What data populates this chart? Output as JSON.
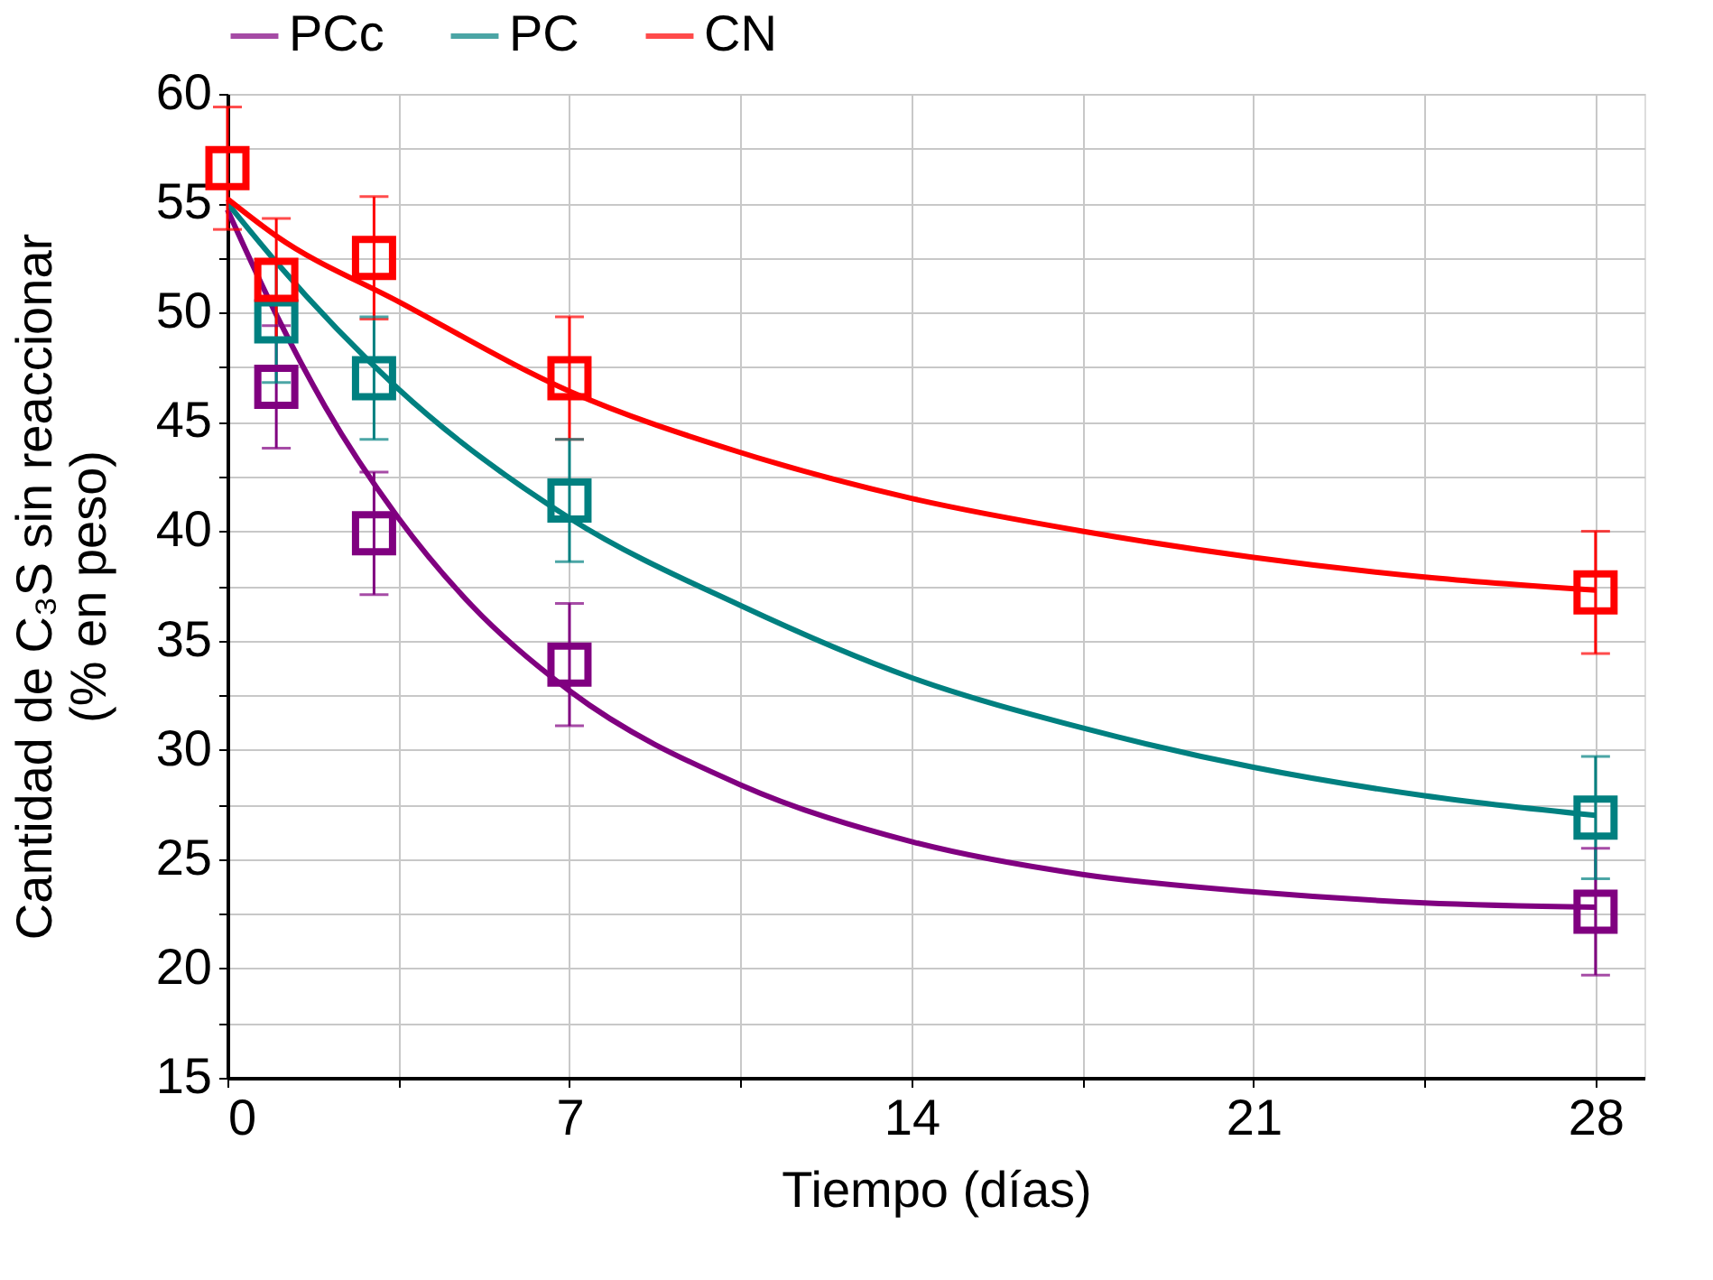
{
  "chart_data": {
    "type": "line",
    "xlabel": "Tiempo (días)",
    "ylabel": "Cantidad de C₃S sin reaccionar\n(% en peso)",
    "xlim": [
      0,
      29
    ],
    "ylim": [
      15,
      60
    ],
    "xticks": [
      0,
      {
        "value": 3.5,
        "label": null
      },
      7,
      {
        "value": 10.5,
        "label": null
      },
      14,
      {
        "value": 17.5,
        "label": null
      },
      21,
      {
        "value": 24.5,
        "label": null
      },
      28
    ],
    "yticks": [
      15,
      {
        "value": 17.5,
        "label": null
      },
      20,
      {
        "value": 22.5,
        "label": null
      },
      25,
      {
        "value": 27.5,
        "label": null
      },
      30,
      {
        "value": 32.5,
        "label": null
      },
      35,
      {
        "value": 37.5,
        "label": null
      },
      40,
      {
        "value": 42.5,
        "label": null
      },
      45,
      {
        "value": 47.5,
        "label": null
      },
      50,
      {
        "value": 52.5,
        "label": null
      },
      55,
      {
        "value": 57.5,
        "label": null
      },
      60
    ],
    "grid": true,
    "legend": "top",
    "series": [
      {
        "name": "PCc",
        "type": "line",
        "color": "#800080",
        "x": [
          0,
          1,
          2,
          3.5,
          5,
          7,
          10.5,
          14,
          17.5,
          21,
          24.5,
          28
        ],
        "values": [
          54.7,
          49.9,
          45.7,
          40.6,
          36.6,
          32.7,
          28.4,
          25.8,
          24.3,
          23.5,
          23.0,
          22.8
        ]
      },
      {
        "name": "PC",
        "type": "line",
        "color": "#008080",
        "x": [
          0,
          1,
          3.5,
          7,
          10.5,
          14,
          17.5,
          21,
          24.5,
          28
        ],
        "values": [
          55.0,
          52.3,
          46.5,
          40.6,
          36.6,
          33.3,
          31.0,
          29.2,
          27.9,
          27.0
        ]
      },
      {
        "name": "CN",
        "type": "line",
        "color": "#ff0000",
        "x": [
          0,
          1,
          3.5,
          7,
          10.5,
          14,
          17.5,
          21,
          24.5,
          28
        ],
        "values": [
          55.2,
          53.5,
          50.5,
          46.4,
          43.6,
          41.5,
          40.0,
          38.8,
          37.9,
          37.3
        ]
      },
      {
        "type": "scatter",
        "color": "#800080",
        "marker": "square",
        "x": [
          1,
          3,
          7,
          28
        ],
        "values": [
          46.6,
          39.9,
          33.9,
          22.6
        ],
        "errors": [
          2.8,
          2.8,
          2.8,
          2.9
        ]
      },
      {
        "type": "scatter",
        "color": "#008080",
        "marker": "square",
        "x": [
          1,
          3,
          7,
          28
        ],
        "values": [
          49.6,
          47.0,
          41.4,
          26.9
        ],
        "errors": [
          2.8,
          2.8,
          2.8,
          2.8
        ]
      },
      {
        "type": "scatter",
        "color": "#ff0000",
        "marker": "square",
        "x": [
          0,
          1,
          3,
          7,
          28
        ],
        "values": [
          56.6,
          51.5,
          52.5,
          47.0,
          37.2
        ],
        "errors": [
          2.8,
          2.8,
          2.8,
          2.8,
          2.8
        ]
      }
    ]
  }
}
